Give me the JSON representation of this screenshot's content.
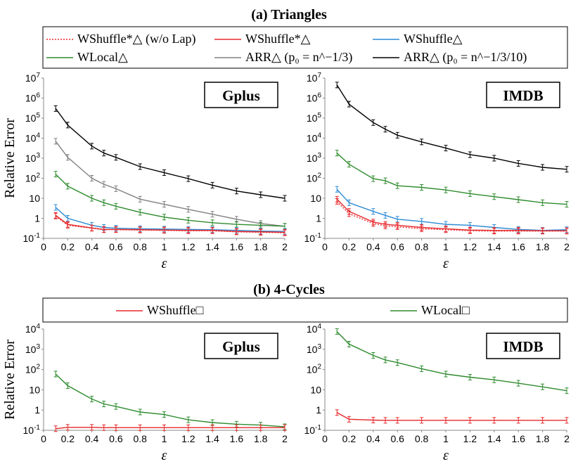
{
  "section_a_title": "(a) Triangles",
  "section_b_title": "(b) 4-Cycles",
  "legend_a": [
    {
      "label": "WShuffle*△ (w/o Lap)",
      "color": "#e8282b",
      "dashed": true
    },
    {
      "label": "WShuffle*△",
      "color": "#e8282b",
      "dashed": false
    },
    {
      "label": "WShuffle△",
      "color": "#2a8ad4",
      "dashed": false
    },
    {
      "label": "WLocal△",
      "color": "#2e8b2e",
      "dashed": false
    },
    {
      "label": "ARR△ (p₀ = n^−1/3)",
      "color": "#808080",
      "dashed": false
    },
    {
      "label": "ARR△ (p₀ = n^−1/3/10)",
      "color": "#000000",
      "dashed": false
    }
  ],
  "legend_b": [
    {
      "label": "WShuffle□",
      "color": "#e8282b",
      "dashed": false
    },
    {
      "label": "WLocal□",
      "color": "#2e8b2e",
      "dashed": false
    }
  ],
  "chart_data": [
    {
      "id": "tri_gplus",
      "type": "line",
      "panel_label": "Gplus",
      "xlabel": "ε",
      "ylabel": "Relative Error",
      "yscale": "log",
      "ylim": [
        0.1,
        10000000
      ],
      "xlim": [
        0,
        2
      ],
      "y_ticks": [
        "10^-1",
        "1",
        "10",
        "10^2",
        "10^3",
        "10^4",
        "10^5",
        "10^6",
        "10^7"
      ],
      "x_ticks": [
        "0",
        "0.2",
        "0.4",
        "0.6",
        "0.8",
        "1",
        "1.2",
        "1.4",
        "1.6",
        "1.8",
        "2"
      ],
      "x": [
        0.1,
        0.2,
        0.4,
        0.5,
        0.6,
        0.8,
        1.0,
        1.2,
        1.4,
        1.6,
        1.8,
        2.0
      ],
      "series": [
        {
          "legend_index": 5,
          "values": [
            300000,
            45000,
            4000,
            1800,
            1100,
            380,
            190,
            95,
            45,
            23,
            15,
            10
          ]
        },
        {
          "legend_index": 4,
          "values": [
            7000,
            1100,
            100,
            50,
            30,
            9,
            5,
            2.8,
            1.6,
            0.9,
            0.55,
            0.4
          ]
        },
        {
          "legend_index": 3,
          "values": [
            160,
            40,
            10,
            6,
            4,
            2,
            1.15,
            0.8,
            0.6,
            0.5,
            0.45,
            0.4
          ]
        },
        {
          "legend_index": 2,
          "values": [
            3.5,
            1.0,
            0.45,
            0.35,
            0.32,
            0.3,
            0.29,
            0.28,
            0.27,
            0.25,
            0.23,
            0.22
          ]
        },
        {
          "legend_index": 1,
          "values": [
            1.4,
            0.5,
            0.33,
            0.28,
            0.28,
            0.27,
            0.26,
            0.25,
            0.25,
            0.22,
            0.21,
            0.2
          ]
        },
        {
          "legend_index": 0,
          "values": [
            1.3,
            0.45,
            0.32,
            0.27,
            0.27,
            0.26,
            0.25,
            0.24,
            0.24,
            0.21,
            0.2,
            0.19
          ]
        }
      ]
    },
    {
      "id": "tri_imdb",
      "type": "line",
      "panel_label": "IMDB",
      "xlabel": "ε",
      "ylabel": "",
      "yscale": "log",
      "ylim": [
        0.1,
        10000000
      ],
      "xlim": [
        0,
        2
      ],
      "y_ticks": [
        "10^-1",
        "1",
        "10",
        "10^2",
        "10^3",
        "10^4",
        "10^5",
        "10^6",
        "10^7"
      ],
      "x_ticks": [
        "0",
        "0.2",
        "0.4",
        "0.6",
        "0.8",
        "1",
        "1.2",
        "1.4",
        "1.6",
        "1.8",
        "2"
      ],
      "x": [
        0.1,
        0.2,
        0.4,
        0.5,
        0.6,
        0.8,
        1.0,
        1.2,
        1.4,
        1.6,
        1.8,
        2.0
      ],
      "series": [
        {
          "legend_index": 5,
          "values": [
            4500000,
            500000,
            60000,
            28000,
            14000,
            6500,
            3200,
            1500,
            1000,
            550,
            350,
            280
          ]
        },
        {
          "legend_index": 3,
          "values": [
            1800,
            500,
            95,
            75,
            42,
            35,
            26,
            17,
            12,
            8.5,
            6,
            5
          ]
        },
        {
          "legend_index": 2,
          "values": [
            28,
            6,
            2.2,
            1.4,
            0.9,
            0.7,
            0.5,
            0.45,
            0.35,
            0.28,
            0.25,
            0.27
          ]
        },
        {
          "legend_index": 1,
          "values": [
            9,
            2.2,
            0.65,
            0.5,
            0.45,
            0.35,
            0.3,
            0.26,
            0.25,
            0.25,
            0.24,
            0.24
          ]
        },
        {
          "legend_index": 0,
          "values": [
            7,
            1.7,
            0.55,
            0.42,
            0.38,
            0.3,
            0.27,
            0.24,
            0.23,
            0.23,
            0.23,
            0.23
          ]
        }
      ]
    },
    {
      "id": "cyc_gplus",
      "type": "line",
      "panel_label": "Gplus",
      "xlabel": "ε",
      "ylabel": "Relative Error",
      "yscale": "log",
      "ylim": [
        0.1,
        10000
      ],
      "xlim": [
        0,
        2
      ],
      "y_ticks": [
        "10^-1",
        "1",
        "10",
        "10^2",
        "10^3",
        "10^4"
      ],
      "x_ticks": [
        "0",
        "0.2",
        "0.4",
        "0.6",
        "0.8",
        "1",
        "1.2",
        "1.4",
        "1.6",
        "1.8",
        "2"
      ],
      "x": [
        0.1,
        0.2,
        0.4,
        0.5,
        0.6,
        0.8,
        1.0,
        1.2,
        1.4,
        1.6,
        1.8,
        2.0
      ],
      "series": [
        {
          "legend_index": 1,
          "values": [
            60,
            16,
            3.5,
            2.0,
            1.5,
            0.8,
            0.6,
            0.33,
            0.24,
            0.2,
            0.18,
            0.15
          ]
        },
        {
          "legend_index": 0,
          "values": [
            0.12,
            0.14,
            0.14,
            0.135,
            0.135,
            0.135,
            0.135,
            0.135,
            0.135,
            0.135,
            0.135,
            0.135
          ]
        }
      ]
    },
    {
      "id": "cyc_imdb",
      "type": "line",
      "panel_label": "IMDB",
      "xlabel": "ε",
      "ylabel": "",
      "yscale": "log",
      "ylim": [
        0.1,
        10000
      ],
      "xlim": [
        0,
        2
      ],
      "y_ticks": [
        "10^-1",
        "1",
        "10",
        "10^2",
        "10^3",
        "10^4"
      ],
      "x_ticks": [
        "0",
        "0.2",
        "0.4",
        "0.6",
        "0.8",
        "1",
        "1.2",
        "1.4",
        "1.6",
        "1.8",
        "2"
      ],
      "x": [
        0.1,
        0.2,
        0.4,
        0.5,
        0.6,
        0.8,
        1.0,
        1.2,
        1.4,
        1.6,
        1.8,
        2.0
      ],
      "series": [
        {
          "legend_index": 1,
          "values": [
            7500,
            1800,
            500,
            300,
            220,
            110,
            60,
            42,
            31,
            21,
            14,
            9
          ]
        },
        {
          "legend_index": 0,
          "values": [
            0.75,
            0.35,
            0.32,
            0.31,
            0.31,
            0.31,
            0.31,
            0.31,
            0.31,
            0.31,
            0.31,
            0.31
          ]
        }
      ]
    }
  ]
}
